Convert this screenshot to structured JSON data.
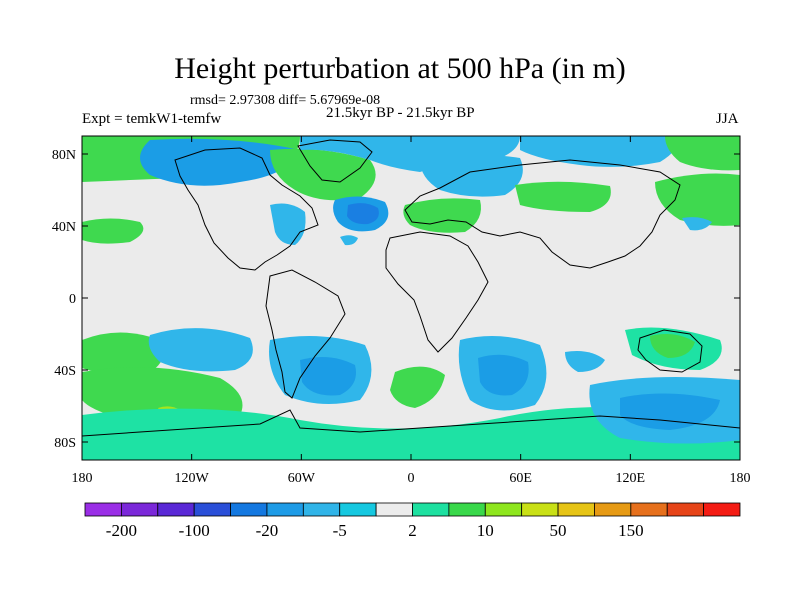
{
  "header": {
    "title": "Height perturbation at 500 hPa (in m)",
    "stats": "rmsd= 2.97308 diff= 5.67969e-08",
    "experiment": "Expt = temkW1-temfw",
    "period": "21.5kyr BP - 21.5kyr BP",
    "season": "JJA"
  },
  "map": {
    "lat_ticks": [
      "80N",
      "40N",
      "0",
      "40S",
      "80S"
    ],
    "lon_ticks": [
      "180",
      "120W",
      "60W",
      "0",
      "60E",
      "120E",
      "180"
    ]
  },
  "colorbar": {
    "colors": [
      "#9a2ee6",
      "#7b28d9",
      "#5a28d6",
      "#2a4fd8",
      "#1478e0",
      "#1e9be6",
      "#30b4e8",
      "#16c8e0",
      "#ececec",
      "#1de0a0",
      "#39d84a",
      "#8ee61e",
      "#c9e016",
      "#e6c416",
      "#e69a14",
      "#e6701c",
      "#e64418",
      "#f41c14"
    ],
    "labels": [
      "-200",
      "-100",
      "-20",
      "-5",
      "2",
      "10",
      "50",
      "150"
    ]
  },
  "regions": {
    "positive_color": "#3fd94f",
    "positive_strong_color": "#a8e41c",
    "teal_color": "#1ee2a4",
    "negative_weak_color": "#30b6ea",
    "negative_color": "#1b9de6",
    "negative_strong_color": "#1a7fe2",
    "background_color": "#ebebeb"
  }
}
